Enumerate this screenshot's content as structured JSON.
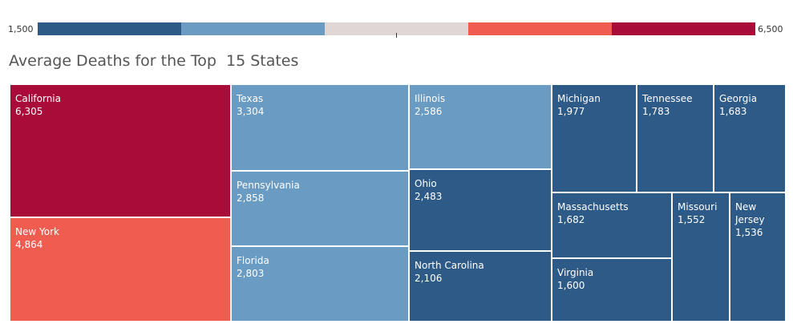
{
  "legend": {
    "min_label": "1,500",
    "max_label": "6,500",
    "steps": [
      "#2e5a87",
      "#6a9bc3",
      "#e0d6d6",
      "#f15c51",
      "#a90c38"
    ]
  },
  "title": "Average Deaths for the Top  15 States",
  "chart_data": {
    "type": "treemap",
    "title": "Average Deaths for the Top  15 States",
    "color_range": [
      1500,
      6500
    ],
    "categories": [
      "California",
      "New York",
      "Texas",
      "Pennsylvania",
      "Florida",
      "Illinois",
      "Ohio",
      "North Carolina",
      "Michigan",
      "Tennessee",
      "Georgia",
      "Massachusetts",
      "Virginia",
      "Missouri",
      "New\nJersey"
    ],
    "values": [
      6305,
      4864,
      3304,
      2858,
      2803,
      2586,
      2483,
      2106,
      1977,
      1783,
      1683,
      1682,
      1600,
      1552,
      1536
    ],
    "value_labels": [
      "6,305",
      "4,864",
      "3,304",
      "2,858",
      "2,803",
      "2,586",
      "2,483",
      "2,106",
      "1,977",
      "1,783",
      "1,683",
      "1,682",
      "1,600",
      "1,552",
      "1,536"
    ],
    "colors": [
      "#a90c38",
      "#f15c51",
      "#6a9bc3",
      "#6a9bc3",
      "#6a9bc3",
      "#6a9bc3",
      "#2e5a87",
      "#2e5a87",
      "#2e5a87",
      "#2e5a87",
      "#2e5a87",
      "#2e5a87",
      "#2e5a87",
      "#2e5a87",
      "#2e5a87"
    ]
  }
}
